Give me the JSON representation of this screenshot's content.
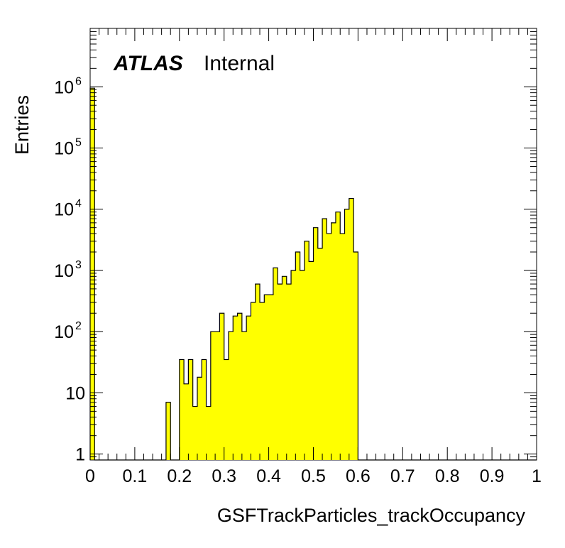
{
  "chart_data": {
    "type": "bar",
    "title": "",
    "xlabel": "GSFTrackParticles_trackOccupancy",
    "ylabel": "Entries",
    "xlim": [
      0,
      1
    ],
    "ylim": [
      0.8,
      9000000
    ],
    "yscale": "log",
    "grid": false,
    "legend": "none",
    "fill_color": "#ffff00",
    "line_color": "#000000",
    "label_bold": "ATLAS",
    "label_normal": "Internal",
    "x_ticks": [
      "0",
      "0.1",
      "0.2",
      "0.3",
      "0.4",
      "0.5",
      "0.6",
      "0.7",
      "0.8",
      "0.9",
      "1"
    ],
    "y_ticks": [
      {
        "value": 1,
        "label": "1"
      },
      {
        "value": 10,
        "label": "10"
      },
      {
        "value": 100,
        "label": "10",
        "exp": "2"
      },
      {
        "value": 1000,
        "label": "10",
        "exp": "3"
      },
      {
        "value": 10000,
        "label": "10",
        "exp": "4"
      },
      {
        "value": 100000,
        "label": "10",
        "exp": "5"
      },
      {
        "value": 1000000,
        "label": "10",
        "exp": "6"
      }
    ],
    "bin_edges_start": 0,
    "bin_width": 0.01,
    "values": [
      950000,
      0,
      0,
      0,
      0,
      0,
      0,
      0,
      0,
      0,
      0,
      0,
      0,
      0,
      0,
      0,
      0,
      7,
      0,
      0,
      35,
      14,
      35,
      6,
      18,
      35,
      6,
      100,
      100,
      200,
      35,
      100,
      180,
      200,
      100,
      180,
      300,
      600,
      300,
      400,
      400,
      1100,
      600,
      800,
      600,
      1000,
      2000,
      1000,
      3000,
      1400,
      5000,
      2300,
      7000,
      4000,
      6000,
      9000,
      4000,
      10000,
      15000,
      2000,
      0,
      0,
      0,
      0,
      0,
      0,
      0,
      0,
      0,
      0,
      0,
      0,
      0,
      0,
      0,
      0,
      0,
      0,
      0,
      0,
      0,
      0,
      0,
      0,
      0,
      0,
      0,
      0,
      0,
      0,
      0,
      0,
      0,
      0,
      0,
      0,
      0,
      0,
      0,
      0
    ]
  }
}
